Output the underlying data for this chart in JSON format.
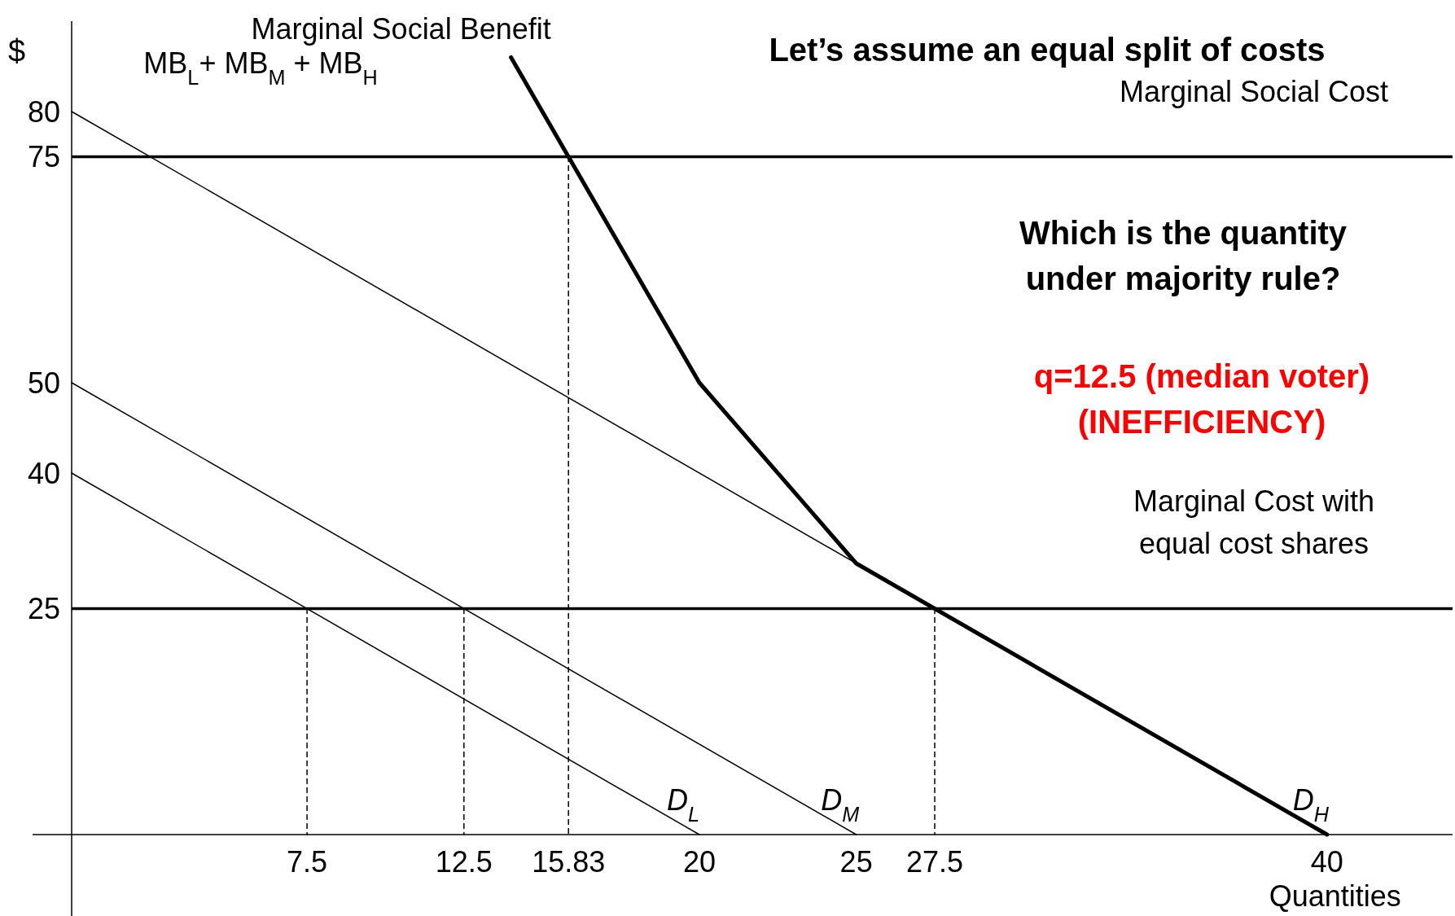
{
  "chart_data": {
    "type": "line",
    "title": "Let’s assume an equal split of costs",
    "xlabel": "Quantities",
    "ylabel": "$",
    "xlim": [
      0,
      44
    ],
    "ylim": [
      0,
      90
    ],
    "xticks": [
      7.5,
      12.5,
      15.83,
      20,
      25,
      27.5,
      40
    ],
    "yticks": [
      25,
      40,
      50,
      75,
      80
    ],
    "grid": false,
    "marker": "none",
    "line_style": "solid",
    "series": [
      {
        "name": "D$_{L}$",
        "color": "#000000",
        "x": [
          0,
          20
        ],
        "values": [
          40,
          0
        ]
      },
      {
        "name": "D$_{M}$",
        "color": "#000000",
        "x": [
          0,
          25
        ],
        "values": [
          50,
          0
        ]
      },
      {
        "name": "D$_{H}$",
        "color": "#000000",
        "x": [
          0,
          40
        ],
        "values": [
          80,
          0
        ]
      },
      {
        "name": "Marginal Social Benefit",
        "color": "#000000",
        "x": [
          14,
          15.83,
          20,
          25,
          40
        ],
        "values": [
          86,
          75,
          50,
          30,
          0
        ]
      },
      {
        "type": "line",
        "line_style": "dashed",
        "color": "#000000",
        "x": [
          7.5,
          7.5
        ],
        "values": [
          25,
          0
        ]
      },
      {
        "type": "line",
        "line_style": "dashed",
        "color": "#000000",
        "x": [
          12.5,
          12.5
        ],
        "values": [
          25,
          0
        ]
      },
      {
        "type": "line",
        "line_style": "dashed",
        "color": "#000000",
        "x": [
          15.83,
          15.83
        ],
        "values": [
          75,
          0
        ]
      },
      {
        "type": "line",
        "line_style": "dashed",
        "color": "#000000",
        "x": [
          27.5,
          27.5
        ],
        "values": [
          25,
          0
        ]
      }
    ],
    "ref_lines": [
      {
        "axis": "y",
        "value": 75,
        "label": "Marginal Social Cost",
        "color": "#000000"
      },
      {
        "axis": "y",
        "value": 25,
        "label": "Marginal Cost with equal cost shares",
        "color": "#000000"
      }
    ],
    "annotations": [
      "MB$_{L}$+ MB$_{M}$ + MB$_{H}$",
      "Which is the quantity\nunder majority rule?",
      "q=12.5 (median voter)\n(INEFFICIENCY)"
    ]
  }
}
